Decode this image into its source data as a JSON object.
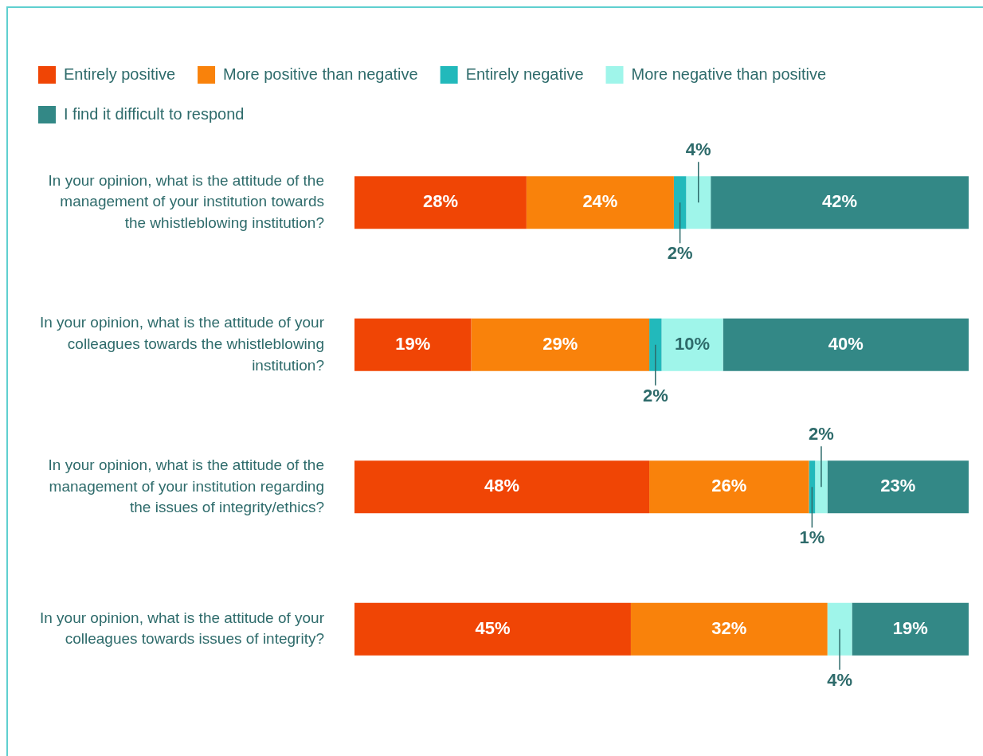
{
  "chart_data": {
    "type": "bar",
    "orientation": "horizontal",
    "stacked": true,
    "legend": "top left",
    "grid": false,
    "tick_labels": "y",
    "categories": [
      "In your opinion, what is the attitude of the management of your institution towards the whistleblowing institution?",
      "In your opinion, what is the attitude of your colleagues towards the whistleblowing institution?",
      "In your opinion, what is the attitude of the management of your institution regarding the issues of integrity/ethics?",
      "In your opinion, what is the attitude of your colleagues towards issues of integrity?"
    ],
    "series": [
      {
        "name": "Entirely positive",
        "color": "#f04505",
        "values": [
          28,
          19,
          48,
          45
        ],
        "value_labels": [
          "28%",
          "19%",
          "48%",
          "45%"
        ]
      },
      {
        "name": "More positive than negative",
        "color": "#f9820b",
        "values": [
          24,
          29,
          26,
          32
        ],
        "value_labels": [
          "24%",
          "29%",
          "26%",
          "32%"
        ]
      },
      {
        "name": "Entirely negative",
        "color": "#22b9bb",
        "values": [
          2,
          2,
          1,
          null
        ],
        "value_labels": [
          "2%",
          "2%",
          "1%",
          null
        ]
      },
      {
        "name": "More negative than positive",
        "color": "#9ff5ea",
        "values": [
          4,
          10,
          2,
          4
        ],
        "value_labels": [
          "4%",
          "10%",
          "2%",
          "4%"
        ]
      },
      {
        "name": "I find it difficult to respond",
        "color": "#338886",
        "values": [
          42,
          40,
          23,
          19
        ],
        "value_labels": [
          "42%",
          "40%",
          "23%",
          "19%"
        ]
      }
    ]
  }
}
